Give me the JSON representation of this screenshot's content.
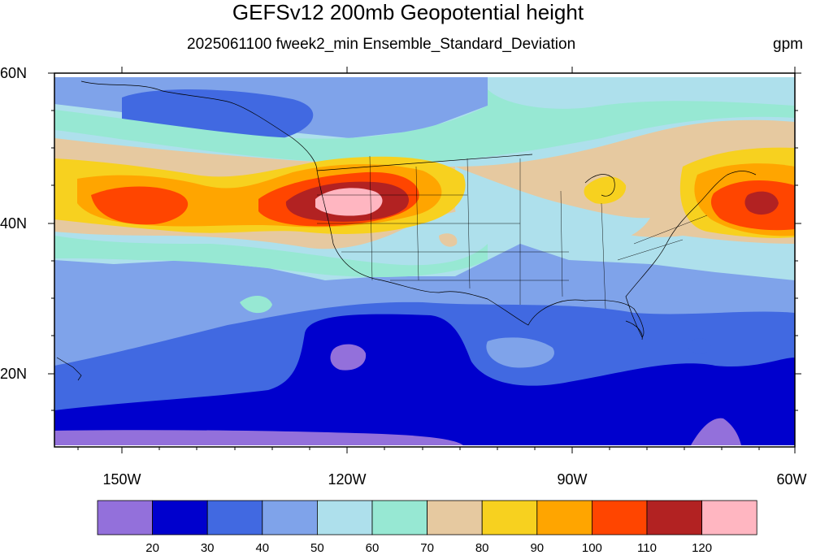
{
  "title": "GEFSv12 200mb Geopotential height",
  "subtitle": "2025061100 fweek2_min Ensemble_Standard_Deviation",
  "units": "gpm",
  "map": {
    "lat_labels": [
      "60N",
      "40N",
      "20N"
    ],
    "lon_labels": [
      "150W",
      "120W",
      "90W",
      "60W"
    ]
  },
  "colorbar": {
    "colors": [
      "#9370DB",
      "#0000CD",
      "#4169E1",
      "#7FA3EA",
      "#AEE0EC",
      "#97E8D3",
      "#E6C9A0",
      "#F7D11F",
      "#FFA500",
      "#FF4500",
      "#B22222",
      "#FFB6C1"
    ],
    "labels": [
      "20",
      "30",
      "40",
      "50",
      "60",
      "70",
      "80",
      "90",
      "100",
      "110",
      "120"
    ]
  }
}
